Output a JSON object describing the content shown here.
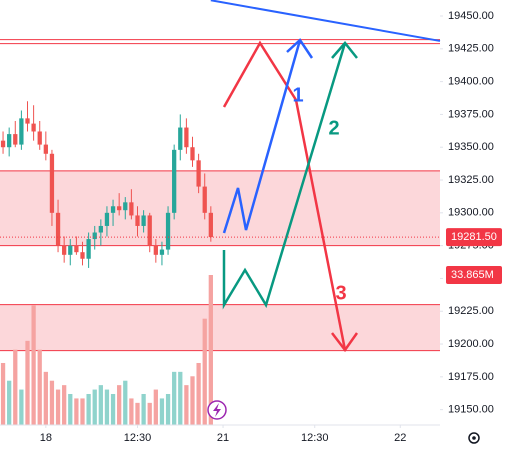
{
  "chart_data": {
    "type": "candlestick",
    "up_color": "#26a69a",
    "down_color": "#ef5350",
    "volume_up_color": "#8fd3cc",
    "volume_down_color": "#f5a3a1",
    "series": {
      "open": [
        19355,
        19350,
        19360,
        19352,
        19372,
        19368,
        19362,
        19352,
        19345,
        19300,
        19275,
        19268,
        19275,
        19270,
        19265,
        19280,
        19285,
        19290,
        19300,
        19305,
        19302,
        19308,
        19298,
        19290,
        19298,
        19275,
        19268,
        19272,
        19300,
        19348,
        19365,
        19350,
        19340,
        19320,
        19300
      ],
      "high": [
        19362,
        19365,
        19370,
        19378,
        19385,
        19382,
        19370,
        19362,
        19348,
        19310,
        19282,
        19280,
        19282,
        19278,
        19285,
        19290,
        19295,
        19305,
        19310,
        19315,
        19312,
        19318,
        19305,
        19302,
        19300,
        19280,
        19278,
        19305,
        19352,
        19375,
        19372,
        19358,
        19345,
        19330,
        19305
      ],
      "low": [
        19345,
        19343,
        19350,
        19348,
        19362,
        19355,
        19348,
        19340,
        19290,
        19270,
        19262,
        19260,
        19268,
        19260,
        19258,
        19272,
        19275,
        19282,
        19290,
        19298,
        19295,
        19295,
        19282,
        19285,
        19270,
        19262,
        19260,
        19268,
        19295,
        19340,
        19345,
        19335,
        19315,
        19295,
        19278
      ],
      "close": [
        19350,
        19360,
        19352,
        19372,
        19368,
        19362,
        19352,
        19345,
        19300,
        19275,
        19268,
        19275,
        19270,
        19265,
        19280,
        19285,
        19290,
        19300,
        19305,
        19302,
        19308,
        19298,
        19290,
        19298,
        19275,
        19268,
        19272,
        19300,
        19348,
        19365,
        19350,
        19340,
        19320,
        19300,
        19281.5
      ],
      "volume": [
        14,
        10,
        17,
        8,
        19,
        27,
        17,
        12,
        10,
        8,
        9,
        7,
        6,
        6,
        7,
        8,
        9,
        8,
        7,
        9,
        10,
        6,
        5,
        7,
        5,
        8,
        6,
        7,
        12,
        12,
        9,
        11,
        14,
        24,
        33.865
      ]
    },
    "xlim": [
      -0.5,
      71.5
    ],
    "xticks": [
      {
        "value": 7,
        "label": "18"
      },
      {
        "value": 22,
        "label": "12:30"
      },
      {
        "value": 36,
        "label": "21"
      },
      {
        "value": 51,
        "label": "12:30"
      },
      {
        "value": 65,
        "label": "22"
      }
    ],
    "ylim": [
      19138.3,
      19462.2
    ],
    "yticks": [
      {
        "value": 19150,
        "label": "19150.00"
      },
      {
        "value": 19175,
        "label": "19175.00"
      },
      {
        "value": 19200,
        "label": "19200.00"
      },
      {
        "value": 19225,
        "label": "19225.00"
      },
      {
        "value": 19250,
        "label": "19250.00"
      },
      {
        "value": 19275,
        "label": "19275.00"
      },
      {
        "value": 19300,
        "label": "19300.00"
      },
      {
        "value": 19325,
        "label": "19325.00"
      },
      {
        "value": 19350,
        "label": "19350.00"
      },
      {
        "value": 19375,
        "label": "19375.00"
      },
      {
        "value": 19400,
        "label": "19400.00"
      },
      {
        "value": 19425,
        "label": "19425.00"
      },
      {
        "value": 19450,
        "label": "19450.00"
      }
    ],
    "last_price": {
      "value": 19281.5,
      "label": "19281.50"
    },
    "volume_tag": "33.865M",
    "zones": [
      {
        "from": 19275,
        "to": 19332
      },
      {
        "from": 19195,
        "to": 19230
      }
    ],
    "levels": [
      19432,
      19429
    ],
    "trendline": {
      "x": [
        34,
        71.5
      ],
      "y": [
        19462,
        19431
      ]
    },
    "annotations": [
      "1",
      "2",
      "3"
    ]
  }
}
